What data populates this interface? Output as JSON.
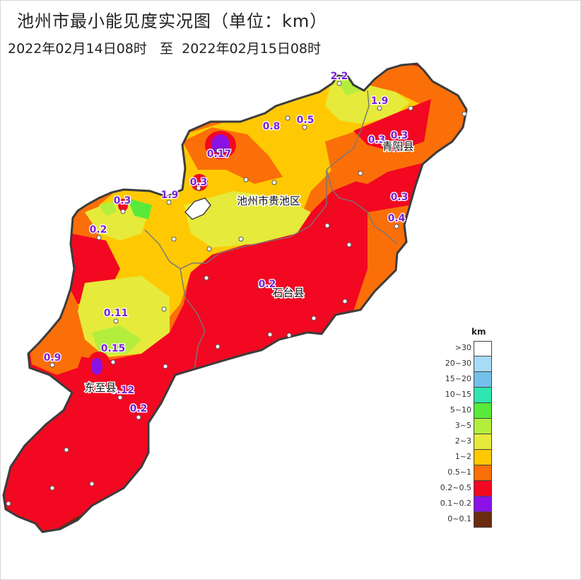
{
  "header": {
    "title": "池州市最小能见度实况图（单位：km）",
    "period_start": "2022年02月14日08时",
    "period_sep": "至",
    "period_end": "2022年02月15日08时"
  },
  "legend": {
    "unit": "km",
    "items": [
      {
        "label": ">30",
        "color": "#ffffff"
      },
      {
        "label": "20~30",
        "color": "#a8dcf6"
      },
      {
        "label": "15~20",
        "color": "#72c0ea"
      },
      {
        "label": "10~15",
        "color": "#2ee6b0"
      },
      {
        "label": "5~10",
        "color": "#57ea3b"
      },
      {
        "label": "3~5",
        "color": "#b4ee3c"
      },
      {
        "label": "2~3",
        "color": "#e6ea3a"
      },
      {
        "label": "1~2",
        "color": "#fec902"
      },
      {
        "label": "0.5~1",
        "color": "#fb6f08"
      },
      {
        "label": "0.2~0.5",
        "color": "#f20821"
      },
      {
        "label": "0.1~0.2",
        "color": "#8a12e6"
      },
      {
        "label": "0~0.1",
        "color": "#6b2b10"
      }
    ]
  },
  "places": [
    {
      "name": "池州市贵池区"
    },
    {
      "name": "青阳县"
    },
    {
      "name": "石台县"
    },
    {
      "name": "东至县"
    }
  ],
  "stations": [
    {
      "value": "2.2"
    },
    {
      "value": "1.9"
    },
    {
      "value": "0.8"
    },
    {
      "value": "0.5"
    },
    {
      "value": "0.3"
    },
    {
      "value": "0.3"
    },
    {
      "value": "0.17"
    },
    {
      "value": "0.3"
    },
    {
      "value": "0.3"
    },
    {
      "value": "1.9"
    },
    {
      "value": "0.3"
    },
    {
      "value": "0.4"
    },
    {
      "value": "0.2"
    },
    {
      "value": "0.2"
    },
    {
      "value": "0.11"
    },
    {
      "value": "0.15"
    },
    {
      "value": "0.9"
    },
    {
      "value": "0.12"
    },
    {
      "value": "0.2"
    }
  ]
}
